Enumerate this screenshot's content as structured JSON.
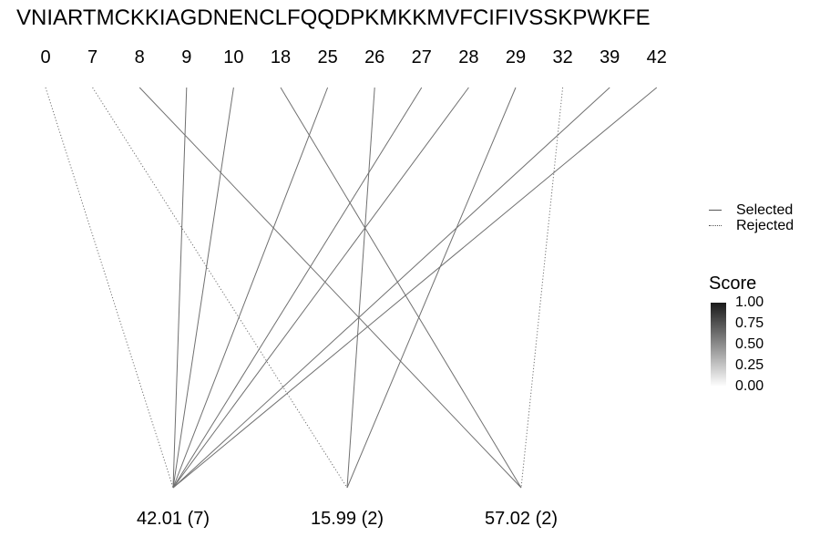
{
  "title": "VNIARTMCKKIAGDNENCLFQQDPKMKKMVFCIFIVSSKPWKFE",
  "positions": [
    "0",
    "7",
    "8",
    "9",
    "10",
    "18",
    "25",
    "26",
    "27",
    "28",
    "29",
    "32",
    "39",
    "42"
  ],
  "groups": [
    "42.01 (7)",
    "15.99 (2)",
    "57.02 (2)"
  ],
  "connections": [
    {
      "position": "0",
      "group": "42.01 (7)",
      "status": "Rejected"
    },
    {
      "position": "7",
      "group": "15.99 (2)",
      "status": "Rejected"
    },
    {
      "position": "8",
      "group": "57.02 (2)",
      "status": "Selected"
    },
    {
      "position": "9",
      "group": "42.01 (7)",
      "status": "Selected"
    },
    {
      "position": "10",
      "group": "42.01 (7)",
      "status": "Selected"
    },
    {
      "position": "18",
      "group": "57.02 (2)",
      "status": "Selected"
    },
    {
      "position": "25",
      "group": "42.01 (7)",
      "status": "Selected"
    },
    {
      "position": "26",
      "group": "15.99 (2)",
      "status": "Selected"
    },
    {
      "position": "27",
      "group": "42.01 (7)",
      "status": "Selected"
    },
    {
      "position": "28",
      "group": "42.01 (7)",
      "status": "Selected"
    },
    {
      "position": "29",
      "group": "15.99 (2)",
      "status": "Selected"
    },
    {
      "position": "32",
      "group": "57.02 (2)",
      "status": "Rejected"
    },
    {
      "position": "39",
      "group": "42.01 (7)",
      "status": "Selected"
    },
    {
      "position": "42",
      "group": "42.01 (7)",
      "status": "Selected"
    }
  ],
  "legend": {
    "selected_label": "Selected",
    "rejected_label": "Rejected",
    "score_title": "Score",
    "score_ticks": [
      "1.00",
      "0.75",
      "0.50",
      "0.25",
      "0.00"
    ]
  },
  "colors": {
    "line": "#707070"
  }
}
